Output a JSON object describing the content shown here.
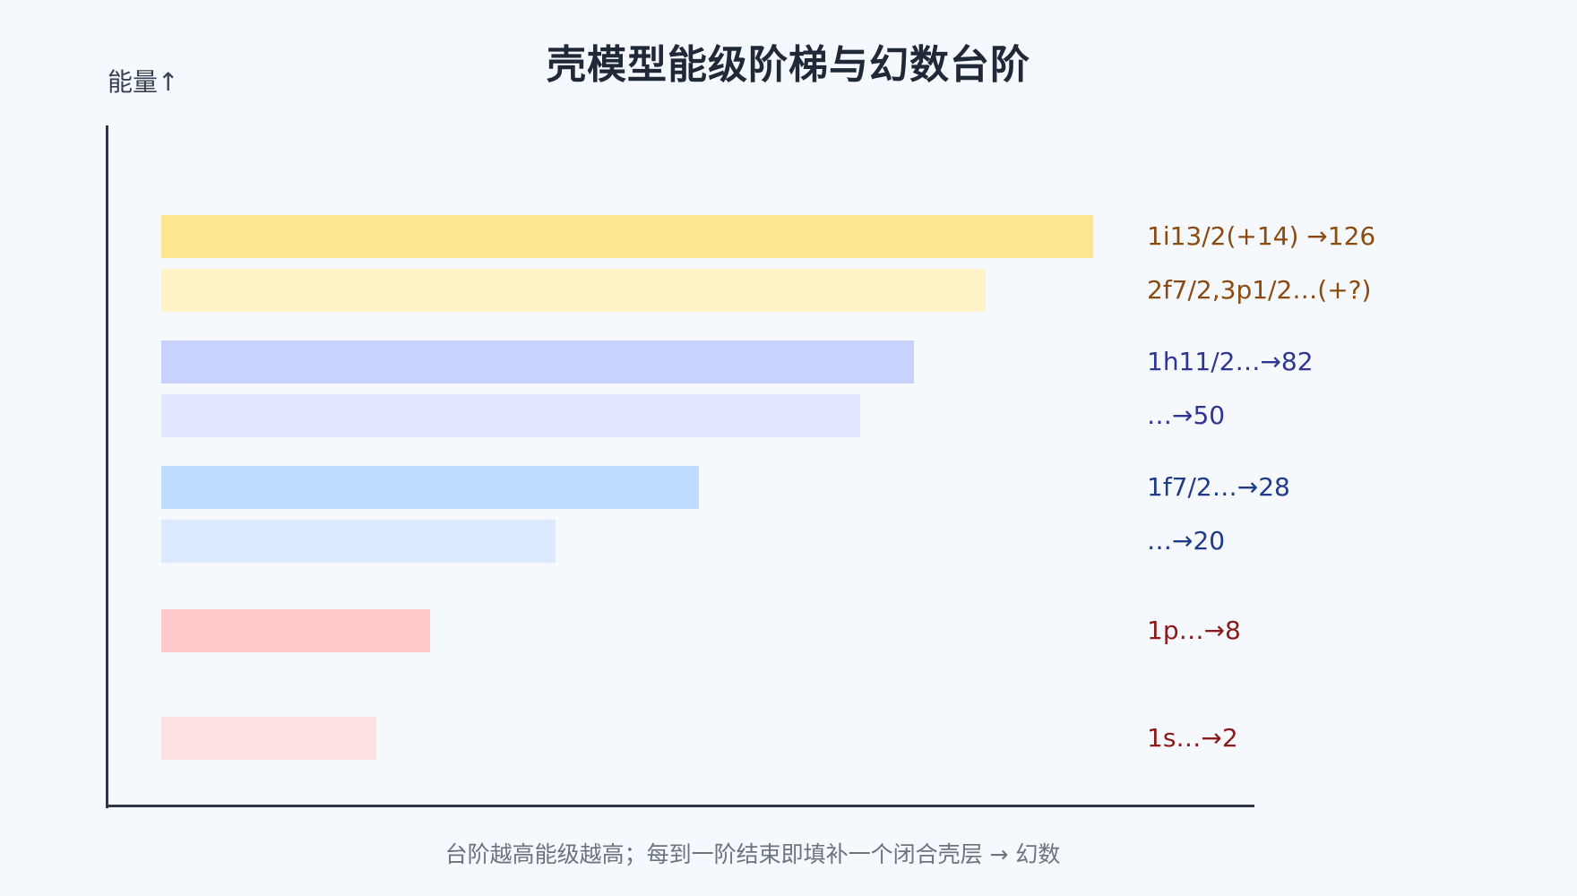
{
  "title": "壳模型能级阶梯与幻数台阶",
  "y_axis_label": "能量↑",
  "caption": "台阶越高能级越高；每到一阶结束即填补一个闭合壳层 → 幻数",
  "levels": [
    {
      "label": "1i13/2(+14) →126",
      "relative_length": 1.0,
      "fill": "#fee68e",
      "text_color": "#8a4a10"
    },
    {
      "label": "2f7/2,3p1/2…(+?)",
      "relative_length": 0.885,
      "fill": "#fef3c7",
      "text_color": "#8a4a10"
    },
    {
      "label": "1h11/2…→82",
      "relative_length": 0.808,
      "fill": "#c7d2fe",
      "text_color": "#2f3592"
    },
    {
      "label": "…→50",
      "relative_length": 0.75,
      "fill": "#e0e7ff",
      "text_color": "#2f3592"
    },
    {
      "label": "1f7/2…→28",
      "relative_length": 0.577,
      "fill": "#bfdbfe",
      "text_color": "#1e3a8a"
    },
    {
      "label": "…→20",
      "relative_length": 0.423,
      "fill": "#dbeafe",
      "text_color": "#1e3a8a"
    },
    {
      "label": "1p…→8",
      "relative_length": 0.288,
      "fill": "#fecaca",
      "text_color": "#8b1a1a"
    },
    {
      "label": "1s…→2",
      "relative_length": 0.231,
      "fill": "#fee2e2",
      "text_color": "#8b1a1a"
    }
  ]
}
